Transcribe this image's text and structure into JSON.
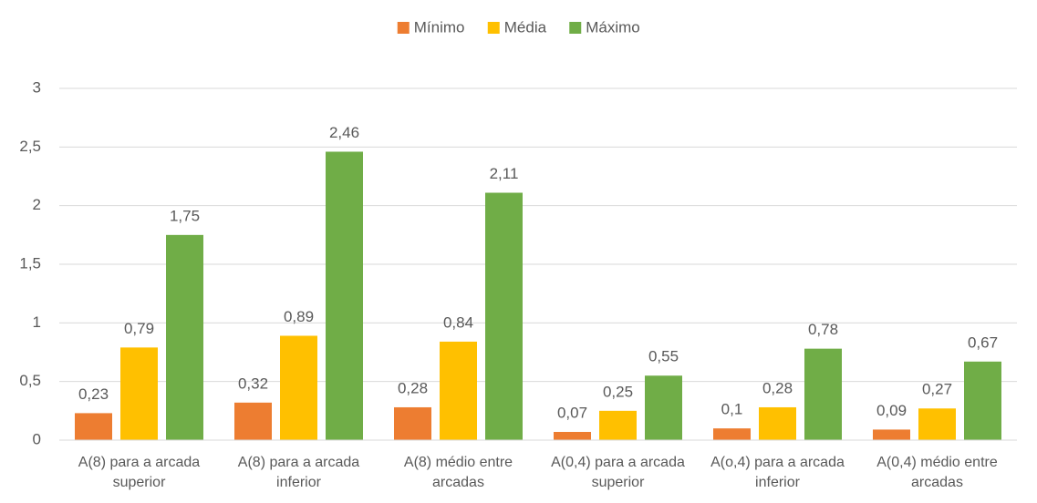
{
  "chart_data": {
    "type": "bar",
    "categories": [
      "A(8) para a arcada superior",
      "A(8) para a arcada inferior",
      "A(8) médio entre arcadas",
      "A(0,4) para a arcada superior",
      "A(o,4) para a arcada inferior",
      "A(0,4) médio entre arcadas"
    ],
    "series": [
      {
        "name": "Mínimo",
        "color": "#ed7d31",
        "values": [
          0.23,
          0.32,
          0.28,
          0.07,
          0.1,
          0.09
        ],
        "value_labels": [
          "0,23",
          "0,32",
          "0,28",
          "0,07",
          "0,1",
          "0,09"
        ]
      },
      {
        "name": "Média",
        "color": "#ffc000",
        "values": [
          0.79,
          0.89,
          0.84,
          0.25,
          0.28,
          0.27
        ],
        "value_labels": [
          "0,79",
          "0,89",
          "0,84",
          "0,25",
          "0,28",
          "0,27"
        ]
      },
      {
        "name": "Máximo",
        "color": "#70ad47",
        "values": [
          1.75,
          2.46,
          2.11,
          0.55,
          0.78,
          0.67
        ],
        "value_labels": [
          "1,75",
          "2,46",
          "2,11",
          "0,55",
          "0,78",
          "0,67"
        ]
      }
    ],
    "ylim": [
      0,
      3
    ],
    "yticks": [
      0,
      {
        "value": 0.5,
        "label": "0,5"
      },
      1,
      {
        "value": 1.5,
        "label": "1,5"
      },
      2,
      {
        "value": 2.5,
        "label": "2,5"
      },
      3
    ],
    "grid": true,
    "legend": "top"
  }
}
